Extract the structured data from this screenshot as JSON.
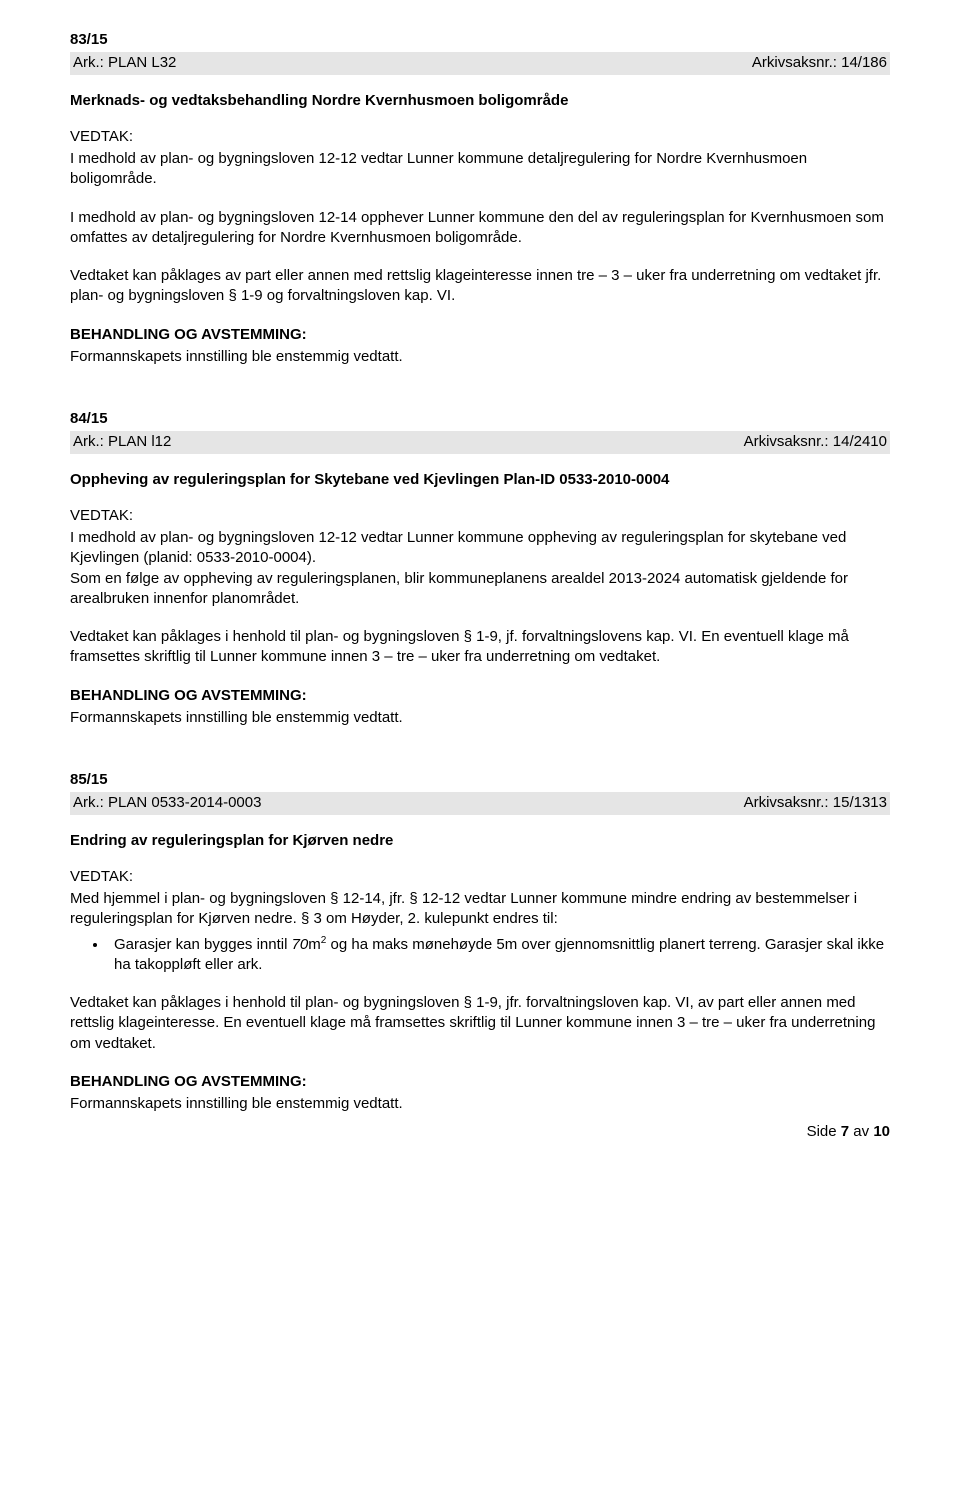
{
  "case83": {
    "num": "83/15",
    "ark_left": "Ark.: PLAN L32",
    "ark_right": "Arkivsaksnr.: 14/186",
    "title": "Merknads- og vedtaksbehandling Nordre Kvernhusmoen boligområde",
    "vedtak_label": "VEDTAK:",
    "p1": "I medhold av plan- og bygningsloven 12-12 vedtar Lunner kommune detaljregulering for Nordre Kvernhusmoen boligområde.",
    "p2": "I medhold av plan- og bygningsloven 12-14 opphever Lunner kommune den del av reguleringsplan for Kvernhusmoen som omfattes av detaljregulering for Nordre Kvernhusmoen boligområde.",
    "p3": "Vedtaket kan påklages av part eller annen med rettslig klageinteresse innen tre – 3 – uker fra underretning om vedtaket jfr. plan- og bygningsloven § 1-9 og forvaltningsloven kap. VI.",
    "beh_label": "BEHANDLING OG AVSTEMMING:",
    "beh_text": "Formannskapets innstilling ble enstemmig vedtatt."
  },
  "case84": {
    "num": "84/15",
    "ark_left": "Ark.: PLAN l12",
    "ark_right": "Arkivsaksnr.: 14/2410",
    "title": "Oppheving av reguleringsplan for Skytebane ved Kjevlingen Plan-ID 0533-2010-0004",
    "vedtak_label": "VEDTAK:",
    "p1": "I medhold av plan- og bygningsloven 12-12 vedtar Lunner kommune oppheving av reguleringsplan for skytebane ved Kjevlingen (planid: 0533-2010-0004).",
    "p2": "Som en følge av oppheving av reguleringsplanen, blir kommuneplanens arealdel 2013-2024 automatisk  gjeldende for arealbruken innenfor planområdet.",
    "p3": "Vedtaket kan påklages i henhold til plan- og bygningsloven § 1-9, jf. forvaltningslovens kap. VI. En eventuell klage må framsettes skriftlig til Lunner kommune innen 3 – tre – uker fra underretning om vedtaket.",
    "beh_label": "BEHANDLING OG AVSTEMMING:",
    "beh_text": "Formannskapets innstilling ble enstemmig vedtatt."
  },
  "case85": {
    "num": "85/15",
    "ark_left": "Ark.: PLAN 0533-2014-0003",
    "ark_right": "Arkivsaksnr.: 15/1313",
    "title": "Endring av reguleringsplan for Kjørven nedre",
    "vedtak_label": "VEDTAK:",
    "p1": "Med hjemmel i plan- og bygningsloven § 12-14, jfr. § 12-12 vedtar Lunner kommune mindre endring av bestemmelser i reguleringsplan for Kjørven nedre. § 3 om Høyder, 2. kulepunkt endres til:",
    "bullet_a": "Garasjer kan bygges inntil ",
    "bullet_i": "70",
    "bullet_b": "m",
    "bullet_sup": "2",
    "bullet_c": " og ha maks mønehøyde 5m over gjennomsnittlig planert terreng. Garasjer skal ikke ha takoppløft eller ark.",
    "p2": "Vedtaket kan påklages i henhold til plan- og bygningsloven § 1-9, jfr. forvaltningsloven kap. VI, av part eller annen med rettslig klageinteresse. En eventuell klage må framsettes skriftlig til Lunner kommune innen 3 – tre – uker fra underretning om vedtaket.",
    "beh_label": "BEHANDLING OG AVSTEMMING:",
    "beh_text": "Formannskapets innstilling ble enstemmig vedtatt."
  },
  "footer": {
    "pre": "Side ",
    "page": "7",
    "mid": " av ",
    "total": "10"
  }
}
